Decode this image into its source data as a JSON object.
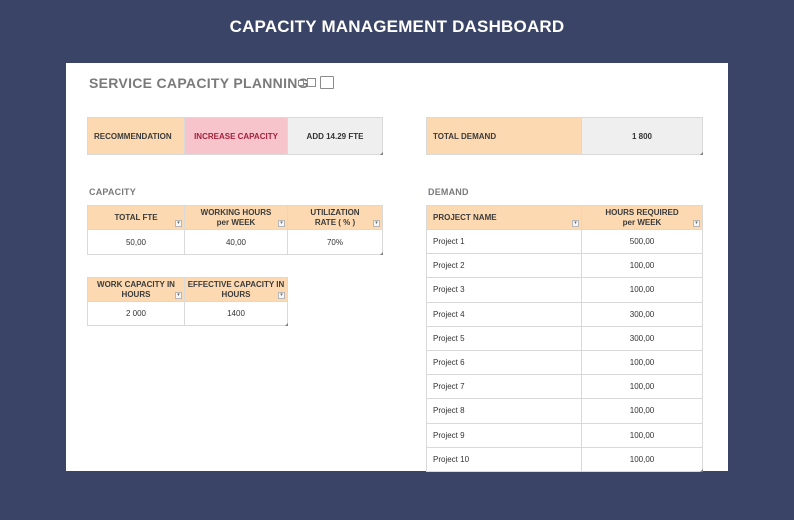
{
  "page": {
    "title": "CAPACITY MANAGEMENT DASHBOARD"
  },
  "sheet": {
    "title": "SERVICE CAPACITY PLANNING"
  },
  "recommendation": {
    "label": "RECOMMENDATION",
    "value": "INCREASE CAPACITY",
    "action": "ADD 14.29 FTE"
  },
  "total_demand": {
    "label": "TOTAL DEMAND",
    "value": "1 800"
  },
  "capacity": {
    "section_label": "CAPACITY",
    "headers": {
      "total_fte": "TOTAL FTE",
      "working_hours_1": "WORKING HOURS",
      "working_hours_2": "per WEEK",
      "utilization_1": "UTILIZATION",
      "utilization_2": "RATE ( % )"
    },
    "values": {
      "total_fte": "50,00",
      "working_hours": "40,00",
      "utilization": "70%"
    },
    "work_headers": {
      "work_capacity_1": "WORK CAPACITY IN",
      "work_capacity_2": "HOURS",
      "effective_1": "EFFECTIVE CAPACITY IN",
      "effective_2": "HOURS"
    },
    "work_values": {
      "work_capacity": "2 000",
      "effective": "1400"
    }
  },
  "demand": {
    "section_label": "DEMAND",
    "headers": {
      "project_name": "PROJECT NAME",
      "hours_1": "HOURS REQUIRED",
      "hours_2": "per WEEK"
    },
    "rows": [
      {
        "name": "Project 1",
        "hours": "500,00"
      },
      {
        "name": "Project 2",
        "hours": "100,00"
      },
      {
        "name": "Project 3",
        "hours": "100,00"
      },
      {
        "name": "Project 4",
        "hours": "300,00"
      },
      {
        "name": "Project 5",
        "hours": "300,00"
      },
      {
        "name": "Project 6",
        "hours": "100,00"
      },
      {
        "name": "Project 7",
        "hours": "100,00"
      },
      {
        "name": "Project 8",
        "hours": "100,00"
      },
      {
        "name": "Project 9",
        "hours": "100,00"
      },
      {
        "name": "Project 10",
        "hours": "100,00"
      }
    ]
  },
  "icons": {
    "dropdown": "▾"
  },
  "colors": {
    "background": "#3a4466",
    "header_fill": "#fcd9b0",
    "alert_fill": "#f8c4cc",
    "alert_text": "#a3213a"
  }
}
